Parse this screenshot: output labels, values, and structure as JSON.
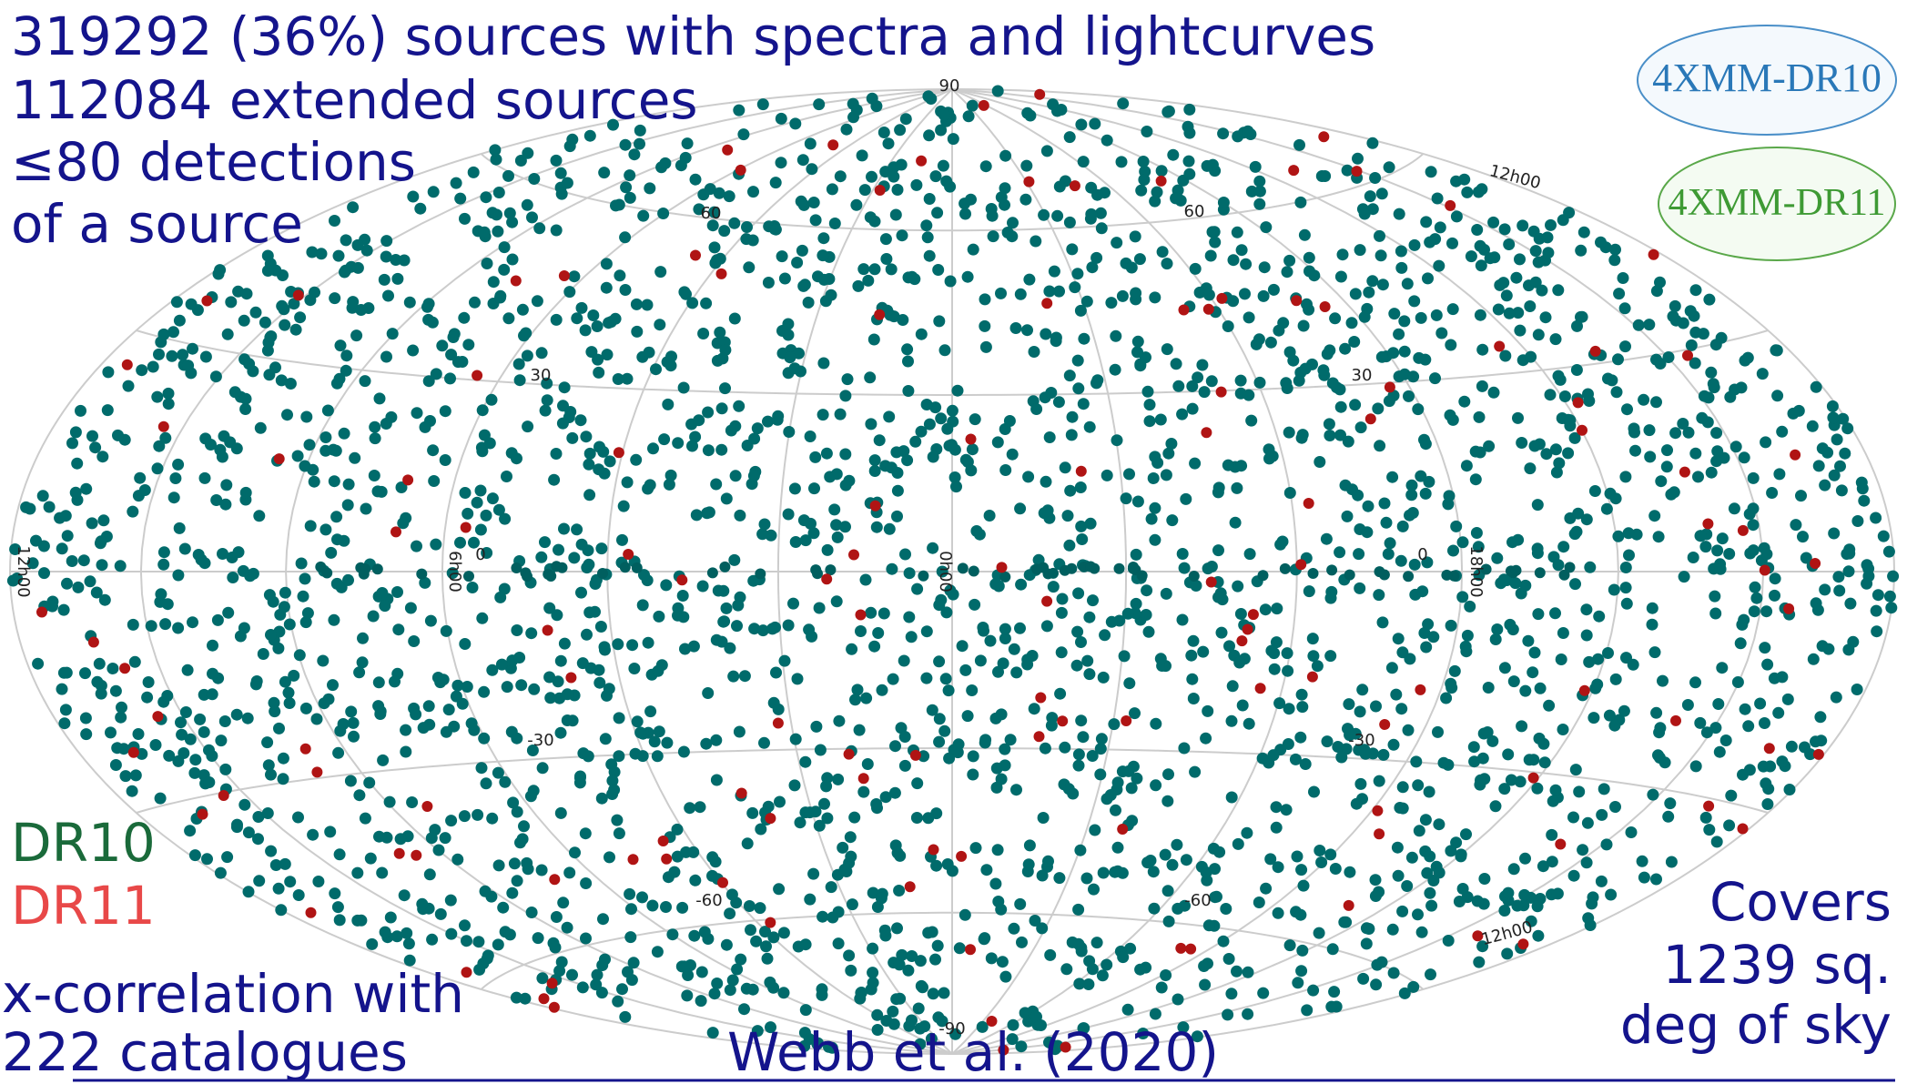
{
  "header": {
    "lines": [
      "319292 (36%) sources with spectra and lightcurves",
      "112084 extended sources",
      "≤80 detections",
      "of a source"
    ]
  },
  "logos": [
    "4XMM-DR10",
    "4XMM-DR11"
  ],
  "legend": [
    "DR10",
    "DR11"
  ],
  "notes": {
    "left": [
      "x-correlation with",
      "222 catalogues"
    ],
    "citation": "Webb et al. (2020)",
    "right": [
      "Covers",
      "1239 sq.",
      "deg of sky"
    ]
  },
  "grid_labels": [
    "90",
    "60",
    "60",
    "30",
    "30",
    "0",
    "0",
    "-30",
    "-30",
    "-60",
    "-60",
    "-90",
    "12h00",
    "12h00",
    "12h00",
    "6h00",
    "0h00",
    "18h00"
  ]
}
